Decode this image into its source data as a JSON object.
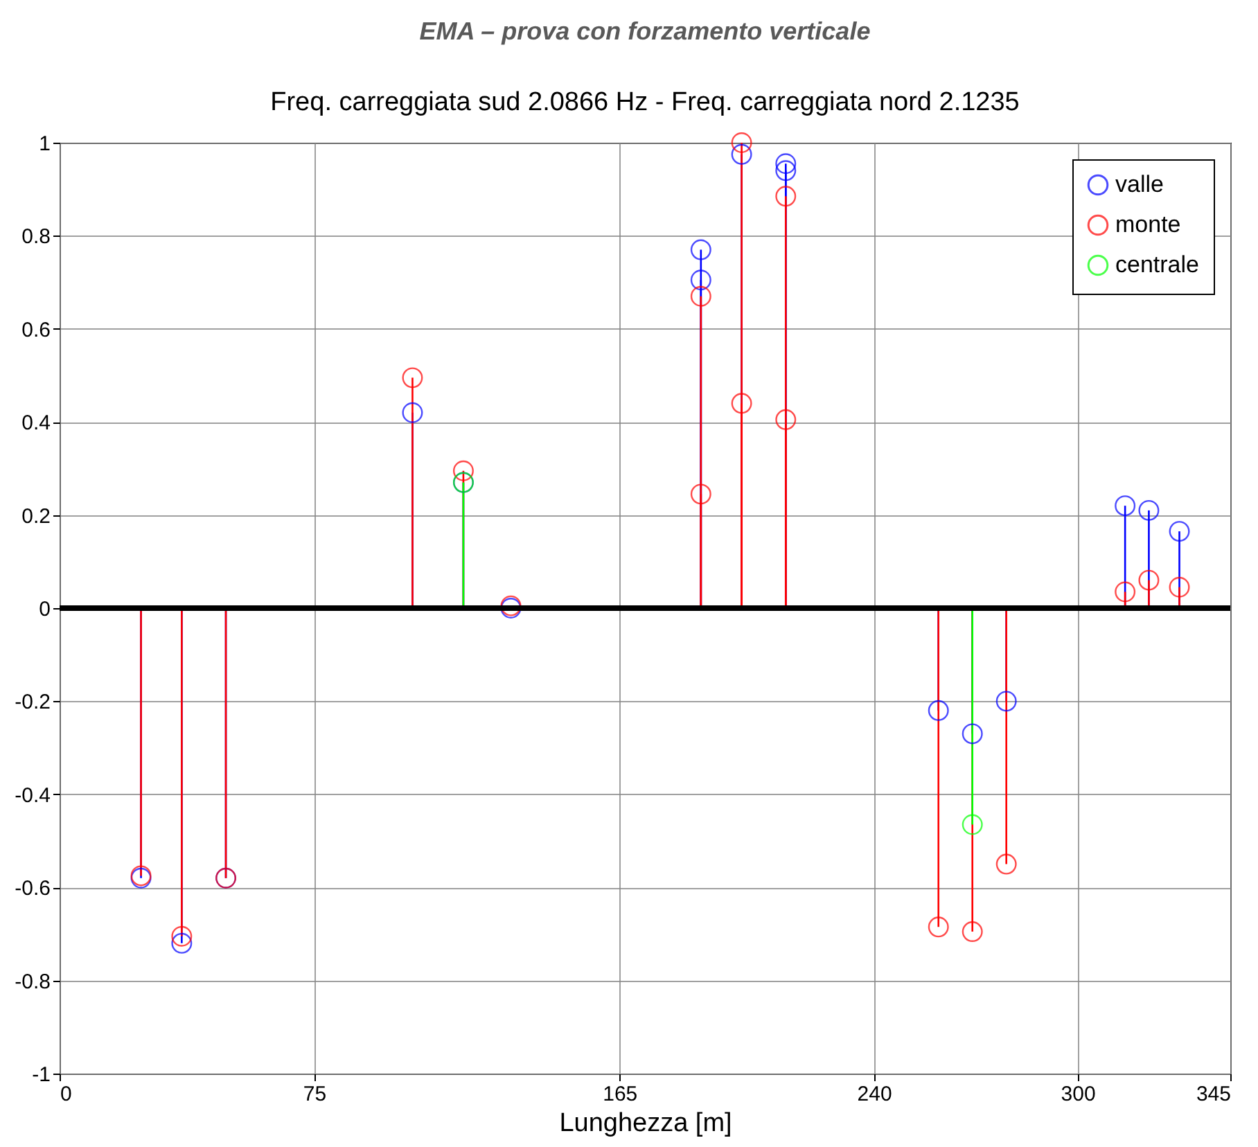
{
  "chart_data": {
    "type": "lollipop",
    "title": "EMA – prova con forzamento verticale",
    "subtitle": "Freq. carreggiata sud 2.0866 Hz - Freq. carreggiata nord 2.1235",
    "xlabel": "Lunghezza [m]",
    "xlim": [
      0,
      345
    ],
    "xticks": [
      0,
      75,
      165,
      240,
      300,
      345
    ],
    "ylim": [
      -1,
      1
    ],
    "yticks": [
      -1,
      -0.8,
      -0.6,
      -0.4,
      -0.2,
      0,
      0.2,
      0.4,
      0.6,
      0.8,
      1
    ],
    "grid": true,
    "legend": "top right",
    "marker": "circle",
    "ref_lines": [
      {
        "axis": "y",
        "value": 0,
        "color": "#000000"
      }
    ],
    "series": [
      {
        "name": "valle",
        "color": "#0000ff",
        "x": [
          24,
          36,
          49,
          104,
          119,
          133,
          189,
          189,
          201,
          214,
          214,
          259,
          269,
          279,
          314,
          321,
          330
        ],
        "values": [
          -0.58,
          -0.72,
          -0.58,
          0.42,
          0.27,
          0,
          0.77,
          0.705,
          0.975,
          0.955,
          0.94,
          -0.22,
          -0.27,
          -0.2,
          0.22,
          0.21,
          0.165
        ]
      },
      {
        "name": "monte",
        "color": "#ff0000",
        "x": [
          24,
          36,
          49,
          104,
          119,
          133,
          189,
          189,
          201,
          201,
          214,
          214,
          259,
          269,
          279,
          314,
          321,
          330
        ],
        "values": [
          -0.575,
          -0.705,
          -0.58,
          0.495,
          0.295,
          0.005,
          0.67,
          0.245,
          1,
          0.44,
          0.885,
          0.405,
          -0.685,
          -0.695,
          -0.55,
          0.035,
          0.06,
          0.045
        ]
      },
      {
        "name": "centrale",
        "color": "#00ff00",
        "x": [
          119,
          269
        ],
        "values": [
          0.27,
          -0.465
        ]
      }
    ]
  }
}
